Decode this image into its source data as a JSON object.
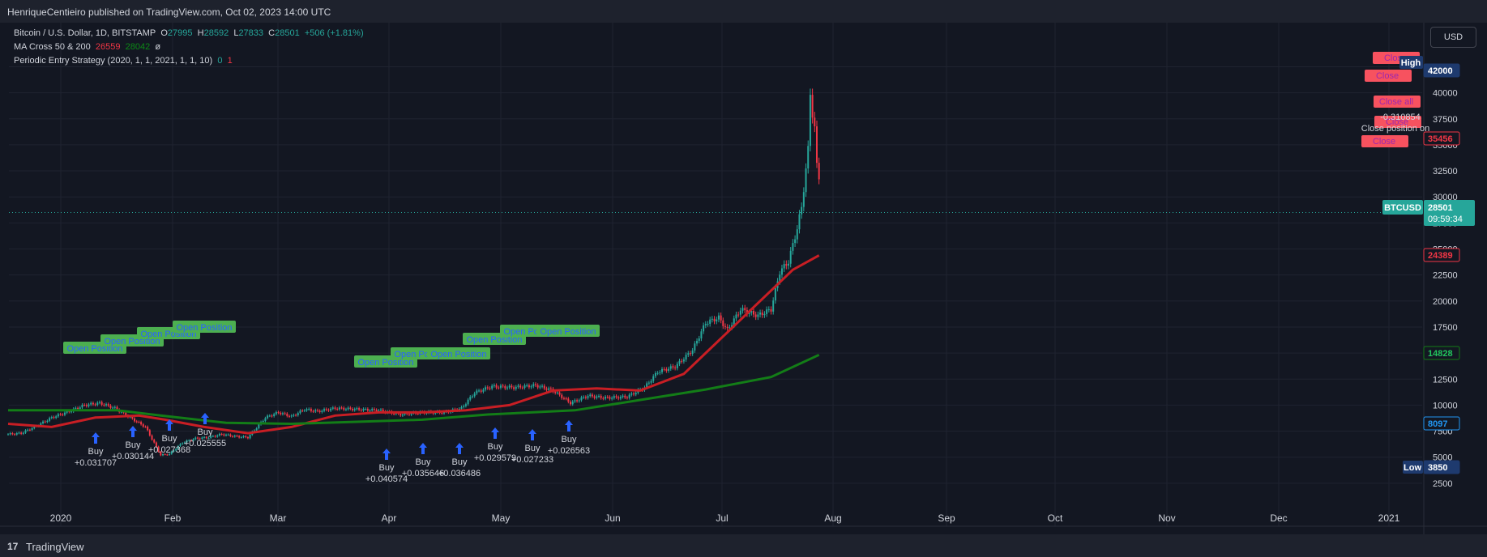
{
  "header": {
    "publisher": "HenriqueCentieiro published on TradingView.com, Oct 02, 2023 14:00 UTC"
  },
  "legend": {
    "symbol": "Bitcoin / U.S. Dollar, 1D, BITSTAMP",
    "o_label": "O",
    "o": "27995",
    "h_label": "H",
    "h": "28592",
    "l_label": "L",
    "l": "27833",
    "c_label": "C",
    "c": "28501",
    "change": "+506 (+1.81%)",
    "ma_name": "MA Cross 50 & 200",
    "ma_fast": "26559",
    "ma_slow": "28042",
    "ma_extra": "ø",
    "strategy": "Periodic Entry Strategy (2020, 1, 1, 2021, 1, 1, 10)",
    "s0": "0",
    "s1": "1"
  },
  "currency_button": "USD",
  "footer": {
    "logo_mark": "17",
    "brand": "TradingView"
  },
  "colors": {
    "up": "#26a69a",
    "down": "#f23645",
    "ma_fast": "#c81e24",
    "ma_slow": "#137d17",
    "buy_arrow": "#2962ff",
    "entry_label": "#4caf50",
    "exit_label": "#f7525f"
  },
  "chart_data": {
    "type": "candlestick",
    "x_ticks": [
      "2020",
      "Feb",
      "Mar",
      "Apr",
      "May",
      "Jun",
      "Jul",
      "Aug",
      "Sep",
      "Oct",
      "Nov",
      "Dec",
      "2021"
    ],
    "y_ticks": [
      "2500",
      "5000",
      "7500",
      "10000",
      "12500",
      "15000",
      "17500",
      "20000",
      "22500",
      "25000",
      "27500",
      "30000",
      "32500",
      "35000",
      "37500",
      "40000",
      "42500"
    ],
    "ylim": [
      0,
      44500
    ],
    "series": [
      {
        "name": "price",
        "points": [
          [
            0,
            7200
          ],
          [
            6,
            7300
          ],
          [
            14,
            8100
          ],
          [
            20,
            8800
          ],
          [
            28,
            9400
          ],
          [
            35,
            10000
          ],
          [
            42,
            10200
          ],
          [
            49,
            9700
          ],
          [
            56,
            8800
          ],
          [
            63,
            7900
          ],
          [
            70,
            5200
          ],
          [
            74,
            5300
          ],
          [
            80,
            6400
          ],
          [
            86,
            6800
          ],
          [
            92,
            6900
          ],
          [
            98,
            7200
          ],
          [
            104,
            7000
          ],
          [
            110,
            6900
          ],
          [
            118,
            8800
          ],
          [
            124,
            9300
          ],
          [
            130,
            8900
          ],
          [
            136,
            9600
          ],
          [
            142,
            9400
          ],
          [
            150,
            9700
          ],
          [
            160,
            9600
          ],
          [
            170,
            9500
          ],
          [
            180,
            9100
          ],
          [
            190,
            9300
          ],
          [
            200,
            9300
          ],
          [
            208,
            9700
          ],
          [
            214,
            11200
          ],
          [
            222,
            11800
          ],
          [
            232,
            11700
          ],
          [
            242,
            11900
          ],
          [
            250,
            11400
          ],
          [
            258,
            10200
          ],
          [
            266,
            10900
          ],
          [
            274,
            10700
          ],
          [
            284,
            10800
          ],
          [
            292,
            11700
          ],
          [
            298,
            13200
          ],
          [
            306,
            13700
          ],
          [
            314,
            15300
          ],
          [
            320,
            17900
          ],
          [
            326,
            18400
          ],
          [
            330,
            17200
          ],
          [
            336,
            19200
          ],
          [
            344,
            18600
          ],
          [
            350,
            19200
          ],
          [
            354,
            22800
          ],
          [
            358,
            23800
          ],
          [
            362,
            27000
          ],
          [
            364,
            29000
          ],
          [
            367,
            34500
          ],
          [
            368,
            40000
          ],
          [
            369,
            38000
          ],
          [
            370,
            36500
          ],
          [
            371,
            33000
          ],
          [
            372,
            32000
          ]
        ]
      },
      {
        "name": "MA 50",
        "points": [
          [
            0,
            8200
          ],
          [
            20,
            7900
          ],
          [
            40,
            8800
          ],
          [
            60,
            9000
          ],
          [
            72,
            8600
          ],
          [
            90,
            7900
          ],
          [
            110,
            7300
          ],
          [
            130,
            7900
          ],
          [
            150,
            9000
          ],
          [
            170,
            9300
          ],
          [
            190,
            9300
          ],
          [
            210,
            9500
          ],
          [
            230,
            10000
          ],
          [
            250,
            11400
          ],
          [
            270,
            11600
          ],
          [
            290,
            11400
          ],
          [
            310,
            13000
          ],
          [
            330,
            17000
          ],
          [
            350,
            21000
          ],
          [
            360,
            23000
          ],
          [
            372,
            24389
          ]
        ]
      },
      {
        "name": "MA 200",
        "points": [
          [
            0,
            9500
          ],
          [
            50,
            9500
          ],
          [
            70,
            9000
          ],
          [
            100,
            8300
          ],
          [
            130,
            8200
          ],
          [
            160,
            8400
          ],
          [
            190,
            8600
          ],
          [
            220,
            9100
          ],
          [
            260,
            9500
          ],
          [
            290,
            10500
          ],
          [
            320,
            11500
          ],
          [
            350,
            12700
          ],
          [
            372,
            14828
          ]
        ]
      }
    ],
    "buy_signals": [
      {
        "label": "Buy",
        "value": "+0.031707"
      },
      {
        "label": "Buy",
        "value": "+0.030144"
      },
      {
        "label": "Buy",
        "value": "+0.027368"
      },
      {
        "label": "Buy",
        "value": "+0.025555"
      },
      {
        "label": "Buy",
        "value": "+0.040574"
      },
      {
        "label": "Buy",
        "value": "+0.035646"
      },
      {
        "label": "Buy",
        "value": "+0.036486"
      },
      {
        "label": "Buy",
        "value": "+0.029579"
      },
      {
        "label": "Buy",
        "value": "+0.027233"
      },
      {
        "label": "Buy",
        "value": "+0.026563"
      }
    ],
    "entry_label": "Open Position",
    "exit_labels": [
      "Close",
      "Close",
      "Close all",
      "Close",
      "Close",
      "Close position on"
    ],
    "exit_value": "-0.310854",
    "price_labels": {
      "high": "High",
      "high_value": "42000",
      "level_1": "35456",
      "symbol_tag": "BTCUSD",
      "last": "28501",
      "countdown": "09:59:34",
      "ma_fast_value": "24389",
      "ma_slow_value": "14828",
      "level_2": "8097",
      "low": "Low",
      "low_value": "3850"
    }
  }
}
